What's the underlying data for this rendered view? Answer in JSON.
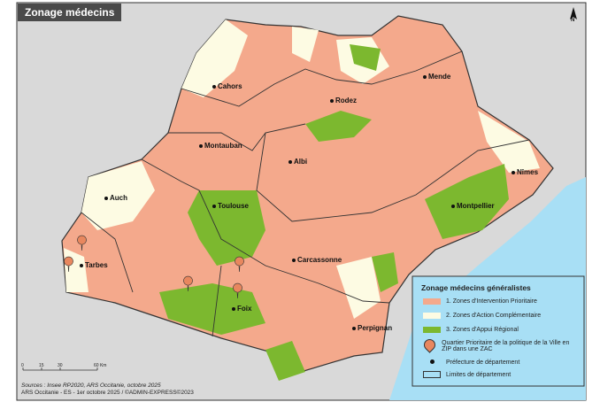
{
  "title": "Zonage médecins",
  "colors": {
    "zip": "#f4a98c",
    "zac": "#fdfbe3",
    "zar": "#7cb82f",
    "sea": "#a8dff5",
    "outside": "#d9d9d9"
  },
  "cities": [
    {
      "name": "Cahors",
      "prefecture": true
    },
    {
      "name": "Rodez",
      "prefecture": true
    },
    {
      "name": "Mende",
      "prefecture": true
    },
    {
      "name": "Montauban",
      "prefecture": true
    },
    {
      "name": "Albi",
      "prefecture": true
    },
    {
      "name": "Nîmes",
      "prefecture": true
    },
    {
      "name": "Auch",
      "prefecture": true
    },
    {
      "name": "Toulouse",
      "prefecture": true
    },
    {
      "name": "Montpellier",
      "prefecture": true
    },
    {
      "name": "Tarbes",
      "prefecture": true
    },
    {
      "name": "Carcassonne",
      "prefecture": true
    },
    {
      "name": "Foix",
      "prefecture": true
    },
    {
      "name": "Perpignan",
      "prefecture": true
    }
  ],
  "legend": {
    "title": "Zonage médecins généralistes",
    "items": [
      "1. Zones d'Intervention Prioritaire",
      "2. Zones d'Action Complémentaire",
      "3. Zones d'Appui Régional",
      "Quartier Prioritaire de la politique de la Ville en ZIP dans une ZAC",
      "Préfecture de département",
      "Limites de département"
    ]
  },
  "pin_label": "QPV",
  "scale": {
    "ticks": [
      "0",
      "15",
      "30",
      "60 Km"
    ]
  },
  "north_label": "N",
  "sources": {
    "line1": "Sources : Insee RP2020, ARS Occitanie, octobre 2025",
    "line2": "ARS Occitanie - ES - 1er octobre 2025 / ©ADMIN-EXPRESS©2023"
  }
}
